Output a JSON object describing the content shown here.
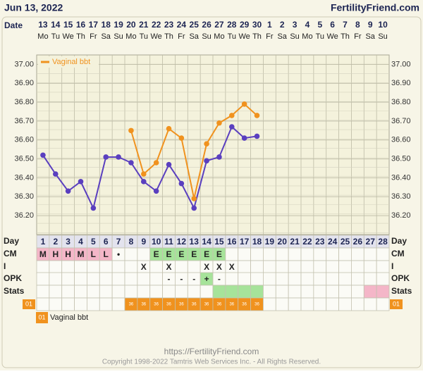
{
  "header": {
    "date": "Jun 13, 2022",
    "site": "FertilityFriend.com"
  },
  "chart_data": {
    "type": "line",
    "x_label": "Date",
    "categories": [
      "13",
      "14",
      "15",
      "16",
      "17",
      "18",
      "19",
      "20",
      "21",
      "22",
      "23",
      "24",
      "25",
      "26",
      "27",
      "28",
      "29",
      "30",
      "1",
      "2",
      "3",
      "4",
      "5",
      "6",
      "7",
      "8",
      "9",
      "10"
    ],
    "weekdays": [
      "Mo",
      "Tu",
      "We",
      "Th",
      "Fr",
      "Sa",
      "Su",
      "Mo",
      "Tu",
      "We",
      "Th",
      "Fr",
      "Sa",
      "Su",
      "Mo",
      "Tu",
      "We",
      "Th",
      "Fr",
      "Sa",
      "Su",
      "Mo",
      "Tu",
      "We",
      "Th",
      "Fr",
      "Sa",
      "Su"
    ],
    "ylim": [
      36.1,
      37.05
    ],
    "yticks": [
      {
        "value": 36.2,
        "label": "36.20"
      },
      {
        "value": 36.3,
        "label": "36.30"
      },
      {
        "value": 36.4,
        "label": "36.40"
      },
      {
        "value": 36.5,
        "label": "36.50"
      },
      {
        "value": 36.6,
        "label": "36.60"
      },
      {
        "value": 36.7,
        "label": "36.70"
      },
      {
        "value": 36.8,
        "label": "36.80"
      },
      {
        "value": 36.9,
        "label": "36.90"
      },
      {
        "value": 37,
        "label": "37.00"
      }
    ],
    "grid": true,
    "legend": "upper left",
    "series": [
      {
        "color": "#5a3fbf",
        "values": [
          36.52,
          36.42,
          36.33,
          36.38,
          36.24,
          36.51,
          36.51,
          36.48,
          36.38,
          36.33,
          36.47,
          36.37,
          36.24,
          36.49,
          36.51,
          36.67,
          36.61,
          36.62,
          null,
          null,
          null,
          null,
          null,
          null,
          null,
          null,
          null,
          null
        ]
      },
      {
        "name": "Vaginal bbt",
        "color": "#f0921e",
        "values": [
          null,
          null,
          null,
          null,
          null,
          null,
          null,
          36.65,
          36.42,
          36.48,
          36.66,
          36.61,
          36.29,
          36.58,
          36.69,
          36.73,
          36.79,
          36.73,
          null,
          null,
          null,
          null,
          null,
          null,
          null,
          null,
          null,
          null
        ]
      }
    ]
  },
  "table": {
    "row_labels": [
      "Day",
      "CM",
      "I",
      "OPK",
      "Stats"
    ],
    "days": [
      1,
      2,
      3,
      4,
      5,
      6,
      7,
      8,
      9,
      10,
      11,
      12,
      13,
      14,
      15,
      16,
      17,
      18,
      19,
      20,
      21,
      22,
      23,
      24,
      25,
      26,
      27,
      28
    ],
    "cm": [
      "M",
      "H",
      "H",
      "M",
      "L",
      "L",
      "•",
      null,
      null,
      "E",
      "E",
      "E",
      "E",
      "E",
      "E",
      null,
      null,
      null,
      null,
      null,
      null,
      null,
      null,
      null,
      null,
      null,
      null,
      null
    ],
    "i": [
      null,
      null,
      null,
      null,
      null,
      null,
      null,
      null,
      "X",
      null,
      "X",
      null,
      null,
      "X",
      "X",
      "X",
      null,
      null,
      null,
      null,
      null,
      null,
      null,
      null,
      null,
      null,
      null,
      null
    ],
    "opk": [
      null,
      null,
      null,
      null,
      null,
      null,
      null,
      null,
      null,
      null,
      "-",
      "-",
      "-",
      "+",
      "-",
      null,
      null,
      null,
      null,
      null,
      null,
      null,
      null,
      null,
      null,
      null,
      null,
      null
    ],
    "stats_highlights": [
      {
        "from": 15,
        "to": 18,
        "color": "#a6e39a"
      },
      {
        "from": 27,
        "to": 28,
        "color": "#f4b6c8"
      }
    ],
    "temp_label": "01",
    "temp_cells": [
      null,
      null,
      null,
      null,
      null,
      null,
      null,
      "36",
      "36",
      "36",
      "36",
      "36",
      "36",
      "36",
      "36",
      "36",
      "36",
      "36",
      null,
      null,
      null,
      null,
      null,
      null,
      null,
      null,
      null,
      null
    ],
    "key": {
      "badge": "01",
      "label": "Vaginal bbt"
    }
  },
  "footer": {
    "url": "https://FertilityFriend.com",
    "copyright": "Copyright 1998-2022 Tamtris Web Services Inc. - All Rights Reserved."
  }
}
